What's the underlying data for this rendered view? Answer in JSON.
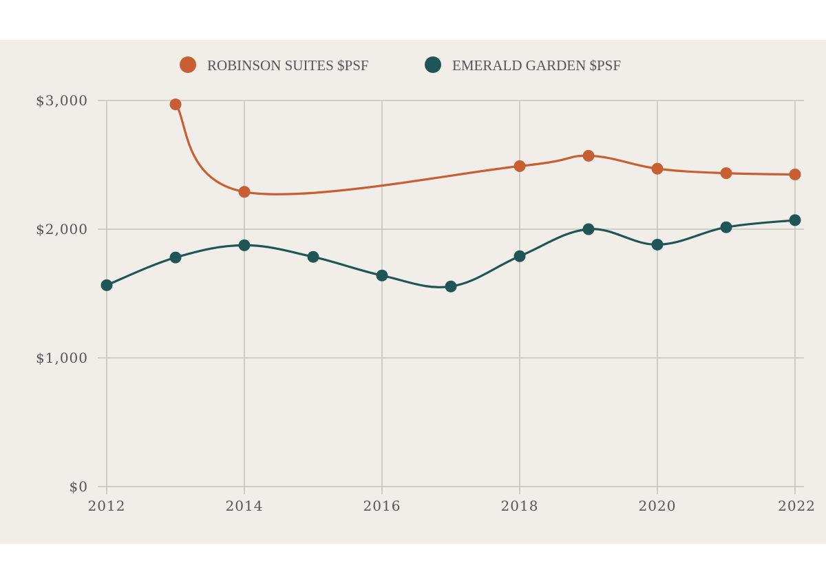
{
  "chart_data": {
    "type": "line",
    "title": "",
    "xlabel": "",
    "ylabel": "",
    "x": [
      2012,
      2013,
      2014,
      2015,
      2016,
      2017,
      2018,
      2019,
      2020,
      2021,
      2022
    ],
    "x_ticks": [
      2012,
      2014,
      2016,
      2018,
      2020,
      2022
    ],
    "x_tick_labels": [
      "2012",
      "2014",
      "2016",
      "2018",
      "2020",
      "2022"
    ],
    "xlim": [
      2012,
      2022
    ],
    "y_ticks": [
      0,
      1000,
      2000,
      3000
    ],
    "y_tick_labels": [
      "$0",
      "$1,000",
      "$2,000",
      "$3,000"
    ],
    "ylim": [
      0,
      3000
    ],
    "grid": true,
    "legend_position": "top-center",
    "series": [
      {
        "name": "ROBINSON SUITES $PSF",
        "color": "#c85f32",
        "values": [
          null,
          2970,
          2290,
          null,
          null,
          null,
          2490,
          2570,
          2470,
          2435,
          2425
        ]
      },
      {
        "name": "EMERALD GARDEN $PSF",
        "color": "#1f5555",
        "values": [
          1565,
          1780,
          1875,
          1785,
          1640,
          1555,
          1790,
          2000,
          1880,
          2015,
          2070
        ]
      }
    ]
  }
}
